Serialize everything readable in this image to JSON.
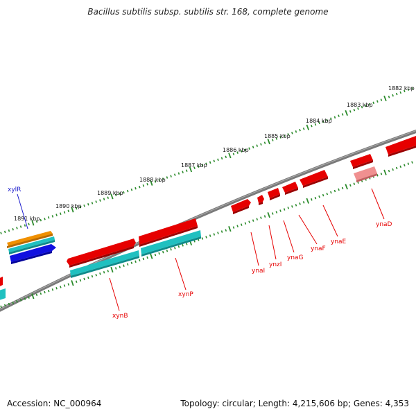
{
  "title": "Bacillus subtilis subsp. subtilis str. 168, complete genome",
  "footer": {
    "accession": "Accession: NC_000964",
    "summary": "Topology: circular; Length: 4,215,606 bp; Genes: 4,353"
  },
  "colors": {
    "backbone": "#7a7a7a",
    "tick": "#2a8a2a",
    "gene_forward": "#e60000",
    "gene_forward_faint": "#f09090",
    "cds": "#20c0c0",
    "xylR_gene": "#f09000",
    "xylR_label": "#1a1acc",
    "blue_feature": "#1010e0"
  },
  "kbp_labels": [
    "1882 kbp",
    "1883 kbp",
    "1884 kbp",
    "1885 kbp",
    "1886 kbp",
    "1887 kbp",
    "1888 kbp",
    "1889 kbp",
    "1890 kbp",
    "1891 kbp"
  ],
  "gene_labels": {
    "xylR": "xylR",
    "xynB": "xynB",
    "xynP": "xynP",
    "ynaI": "ynaI",
    "ynzI": "ynzI",
    "ynaG": "ynaG",
    "ynaF": "ynaF",
    "ynaE": "ynaE",
    "ynaD": "ynaD"
  }
}
